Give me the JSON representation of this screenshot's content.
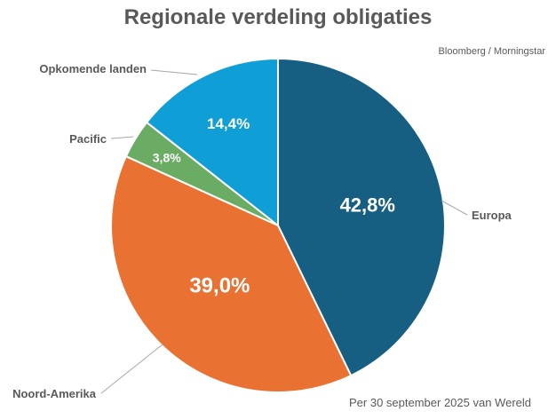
{
  "chart_data": {
    "type": "pie",
    "title": "Regionale verdeling obligaties",
    "source": "Bloomberg / Morningstar",
    "note": "Per 30 september 2025 van Wereld",
    "start_angle": "12 o'clock, clockwise",
    "slices": [
      {
        "label": "Europa",
        "value": 42.8,
        "display": "42,8%",
        "color": "#165f82"
      },
      {
        "label": "Noord-Amerika",
        "value": 39.0,
        "display": "39,0%",
        "color": "#e97132"
      },
      {
        "label": "Pacific",
        "value": 3.8,
        "display": "3,8%",
        "color": "#6aac63"
      },
      {
        "label": "Opkomende landen",
        "value": 14.4,
        "display": "14,4%",
        "color": "#0f9ed5"
      }
    ]
  }
}
